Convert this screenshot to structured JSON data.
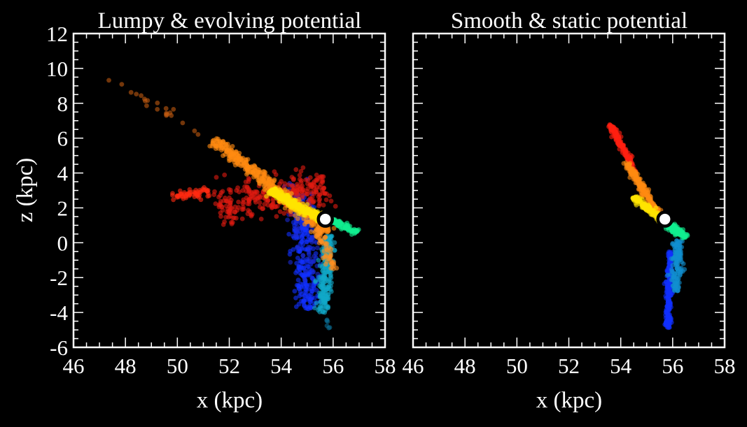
{
  "chart_data": [
    {
      "type": "scatter",
      "title": "Lumpy & evolving potential",
      "xlabel": "x (kpc)",
      "ylabel": "z (kpc)",
      "xlim": [
        46,
        58
      ],
      "ylim": [
        -6,
        12
      ],
      "xticks": [
        "46",
        "48",
        "50",
        "52",
        "54",
        "56",
        "58"
      ],
      "yticks": [
        "-6",
        "-4",
        "-2",
        "0",
        "2",
        "4",
        "6",
        "8",
        "10",
        "12"
      ],
      "progenitor": [
        55.7,
        1.35
      ],
      "streams": [
        {
          "name": "blue",
          "color": "#1030ff",
          "from": [
            54.7,
            2.8
          ],
          "to": [
            55.1,
            -3.8
          ],
          "width": 0.45,
          "count": 260
        },
        {
          "name": "blue-sparse",
          "color": "#1a2ad0",
          "from": [
            54.2,
            3.5
          ],
          "to": [
            55.3,
            -2.2
          ],
          "width": 0.6,
          "count": 60
        },
        {
          "name": "cyan",
          "color": "#10a8c8",
          "from": [
            55.8,
            0.4
          ],
          "to": [
            55.6,
            -4.0
          ],
          "width": 0.25,
          "count": 220
        },
        {
          "name": "teal-tail",
          "color": "#0a6a90",
          "from": [
            55.75,
            -4.4
          ],
          "to": [
            55.85,
            -4.9
          ],
          "width": 0.08,
          "count": 6
        },
        {
          "name": "red-cloud",
          "color": "#e01a10",
          "from": [
            51.5,
            2.0
          ],
          "to": [
            55.8,
            3.2
          ],
          "width": 1.1,
          "count": 320
        },
        {
          "name": "red-arm",
          "color": "#ff2a10",
          "from": [
            49.8,
            2.6
          ],
          "to": [
            51.2,
            3.0
          ],
          "width": 0.3,
          "count": 60
        },
        {
          "name": "orange-tail",
          "color": "#c05a10",
          "from": [
            47.3,
            9.4
          ],
          "to": [
            51.0,
            6.3
          ],
          "width": 0.25,
          "count": 22
        },
        {
          "name": "orange",
          "color": "#ff8a10",
          "from": [
            51.4,
            5.9
          ],
          "to": [
            55.8,
            0.6
          ],
          "width": 0.3,
          "count": 420
        },
        {
          "name": "orange-low",
          "color": "#ff9020",
          "from": [
            55.4,
            0.8
          ],
          "to": [
            56.0,
            -1.5
          ],
          "width": 0.2,
          "count": 60
        },
        {
          "name": "yellow",
          "color": "#ffe400",
          "from": [
            53.6,
            3.0
          ],
          "to": [
            55.6,
            1.3
          ],
          "width": 0.22,
          "count": 320
        },
        {
          "name": "green",
          "color": "#10ee90",
          "from": [
            55.9,
            1.3
          ],
          "to": [
            56.9,
            0.6
          ],
          "width": 0.18,
          "count": 110
        }
      ]
    },
    {
      "type": "scatter",
      "title": "Smooth & static potential",
      "xlabel": "x (kpc)",
      "xlim": [
        46,
        58
      ],
      "ylim": [
        -6,
        12
      ],
      "xticks": [
        "46",
        "48",
        "50",
        "52",
        "54",
        "56",
        "58"
      ],
      "progenitor": [
        55.7,
        1.35
      ],
      "streams": [
        {
          "name": "blue",
          "color": "#1030ff",
          "from": [
            55.9,
            -0.5
          ],
          "to": [
            55.8,
            -4.9
          ],
          "width": 0.12,
          "count": 200
        },
        {
          "name": "cyan",
          "color": "#1090d0",
          "from": [
            56.2,
            0.2
          ],
          "to": [
            56.1,
            -2.8
          ],
          "width": 0.2,
          "count": 140
        },
        {
          "name": "green",
          "color": "#10ee90",
          "from": [
            55.8,
            1.1
          ],
          "to": [
            56.5,
            0.3
          ],
          "width": 0.18,
          "count": 130
        },
        {
          "name": "red",
          "color": "#ff2010",
          "from": [
            53.6,
            6.8
          ],
          "to": [
            54.6,
            4.0
          ],
          "width": 0.12,
          "count": 160
        },
        {
          "name": "orange",
          "color": "#ff8a10",
          "from": [
            54.2,
            4.6
          ],
          "to": [
            55.4,
            1.8
          ],
          "width": 0.15,
          "count": 180
        },
        {
          "name": "yellow",
          "color": "#ffe400",
          "from": [
            54.5,
            2.6
          ],
          "to": [
            55.6,
            1.3
          ],
          "width": 0.15,
          "count": 170
        }
      ]
    }
  ]
}
